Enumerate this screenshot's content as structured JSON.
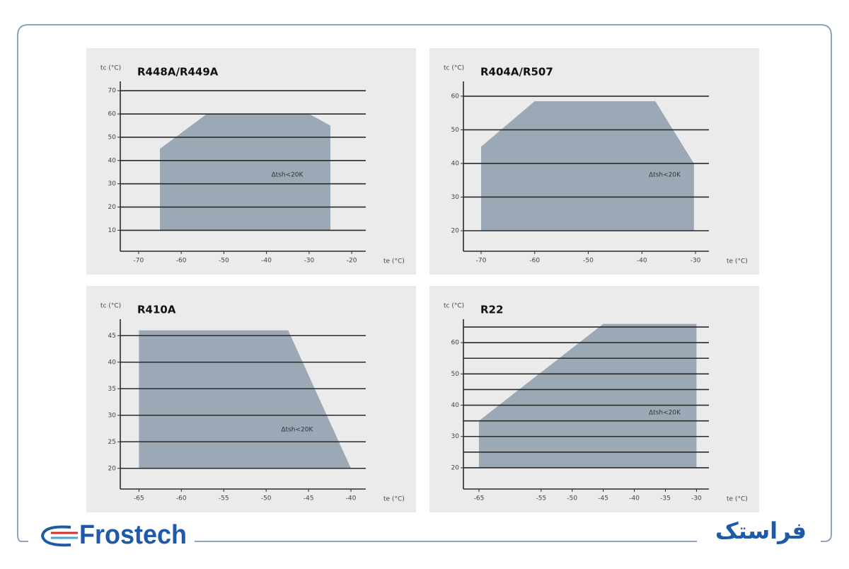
{
  "chart_data": [
    {
      "type": "envelope",
      "title": "R448A/R449A",
      "ylabel": "tc (°C)",
      "xlabel": "te (°C)",
      "annotation": "Δtsh<20K",
      "x": [
        -65,
        -65,
        -54,
        -30,
        -25,
        -25
      ],
      "y": [
        10,
        45,
        60,
        60,
        55,
        10
      ],
      "color": "#9aa9b5",
      "xlim": [
        -74.3,
        -16.7
      ],
      "ylim": [
        1,
        74
      ],
      "xticks": [
        -70,
        -60,
        -50,
        -40,
        -30,
        -20
      ],
      "yticks": [
        10,
        20,
        30,
        40,
        50,
        60,
        70
      ],
      "ygrid": [
        10,
        20,
        30,
        40,
        50,
        60,
        70
      ]
    },
    {
      "type": "envelope",
      "title": "R404A/R507",
      "ylabel": "tc (°C)",
      "xlabel": "te (°C)",
      "annotation": "Δtsh<20K",
      "x": [
        -70,
        -70,
        -60,
        -37.5,
        -30.3,
        -30.3
      ],
      "y": [
        20,
        45,
        58.5,
        58.5,
        40,
        20
      ],
      "color": "#9aa9b5",
      "xlim": [
        -73.3,
        -27.5
      ],
      "ylim": [
        13.9,
        64.4
      ],
      "xticks": [
        -70,
        -60,
        -50,
        -40,
        -30
      ],
      "yticks": [
        20,
        30,
        40,
        50,
        60
      ],
      "ygrid": [
        20,
        30,
        40,
        50,
        60
      ]
    },
    {
      "type": "envelope",
      "title": "R410A",
      "ylabel": "tc (°C)",
      "xlabel": "te (°C)",
      "annotation": "Δtsh<20K",
      "x": [
        -65,
        -65,
        -47.4,
        -40
      ],
      "y": [
        20,
        46,
        46,
        20
      ],
      "color": "#9aa9b5",
      "xlim": [
        -67.2,
        -38.25
      ],
      "ylim": [
        16.1,
        48.1
      ],
      "xticks": [
        -65,
        -60,
        -55,
        -50,
        -45,
        -40
      ],
      "yticks": [
        20,
        25,
        30,
        35,
        40,
        45
      ],
      "ygrid": [
        20,
        25,
        30,
        35,
        40,
        45
      ]
    },
    {
      "type": "envelope",
      "title": "R22",
      "ylabel": "tc (°C)",
      "xlabel": "te (°C)",
      "annotation": "Δtsh<20K",
      "x": [
        -65,
        -65,
        -45,
        -30,
        -30
      ],
      "y": [
        20,
        35,
        66,
        66,
        20
      ],
      "color": "#9aa9b5",
      "xlim": [
        -67.5,
        -28
      ],
      "ylim": [
        13.2,
        67.5
      ],
      "xticks": [
        -65,
        -55,
        -50,
        -45,
        -40,
        -35,
        -30
      ],
      "yticks": [
        20,
        30,
        40,
        50,
        60
      ],
      "ygrid": [
        20,
        25,
        30,
        35,
        40,
        45,
        50,
        55,
        60,
        65
      ]
    }
  ],
  "brand": {
    "en": "Frostech",
    "fa": "فراستک"
  }
}
